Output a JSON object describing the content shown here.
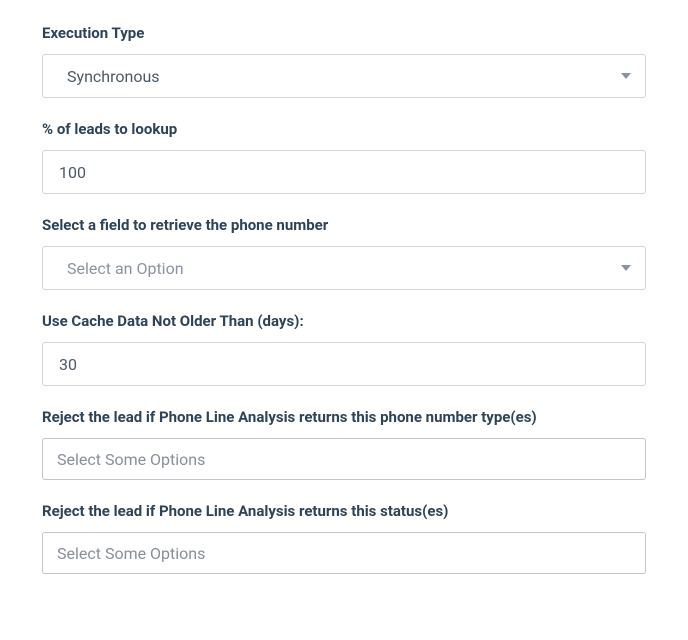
{
  "form": {
    "execution_type": {
      "label": "Execution Type",
      "value": "Synchronous"
    },
    "percent_lookup": {
      "label": "% of leads to lookup",
      "value": "100"
    },
    "phone_field": {
      "label": "Select a field to retrieve the phone number",
      "placeholder": "Select an Option"
    },
    "cache_days": {
      "label": "Use Cache Data Not Older Than (days):",
      "value": "30"
    },
    "reject_phone_type": {
      "label": "Reject the lead if Phone Line Analysis returns this phone number type(es)",
      "placeholder": "Select Some Options"
    },
    "reject_status": {
      "label": "Reject the lead if Phone Line Analysis returns this status(es)",
      "placeholder": "Select Some Options"
    }
  },
  "colors": {
    "label_text": "#2d4356",
    "input_border": "#d1d5da",
    "input_text": "#4a5a68",
    "placeholder_text": "#8a94a0",
    "background": "#ffffff"
  }
}
